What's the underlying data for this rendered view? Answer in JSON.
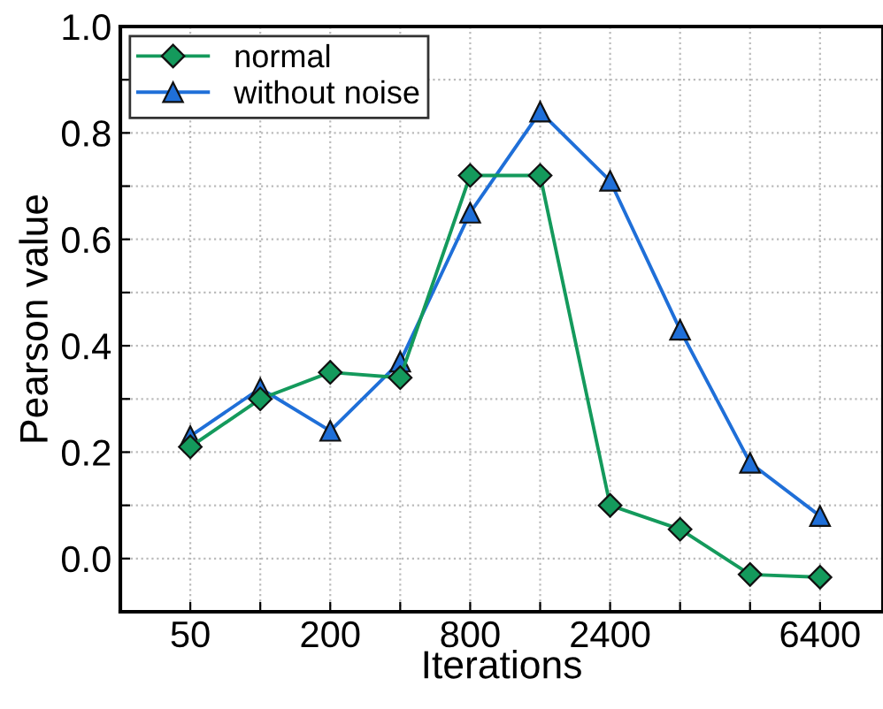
{
  "chart_data": {
    "type": "line",
    "xlabel": "Iterations",
    "ylabel": "Pearson value",
    "categories": [
      "50",
      null,
      "200",
      null,
      "800",
      null,
      "2400",
      null,
      null,
      "6400"
    ],
    "series": [
      {
        "name": "normal",
        "color": "#149a5c",
        "marker": "diamond",
        "values": [
          0.21,
          0.3,
          0.35,
          0.34,
          0.72,
          0.72,
          0.1,
          0.055,
          -0.03,
          -0.035
        ]
      },
      {
        "name": "without noise",
        "color": "#1f6fd8",
        "marker": "triangle",
        "values": [
          0.23,
          0.32,
          0.24,
          0.37,
          0.65,
          0.84,
          0.71,
          0.43,
          0.18,
          0.08
        ]
      }
    ],
    "ylim": [
      -0.1,
      1.0
    ],
    "yticks": [
      {
        "value": 0.0,
        "label": "0.0"
      },
      {
        "value": 0.1,
        "label": null
      },
      {
        "value": 0.2,
        "label": "0.2"
      },
      {
        "value": 0.3,
        "label": null
      },
      {
        "value": 0.4,
        "label": "0.4"
      },
      {
        "value": 0.5,
        "label": null
      },
      {
        "value": 0.6,
        "label": "0.6"
      },
      {
        "value": 0.7,
        "label": null
      },
      {
        "value": 0.8,
        "label": "0.8"
      },
      {
        "value": 0.9,
        "label": null
      },
      {
        "value": 1.0,
        "label": "1.0"
      }
    ],
    "grid": true,
    "legend": "top left",
    "line_style": "solid"
  }
}
